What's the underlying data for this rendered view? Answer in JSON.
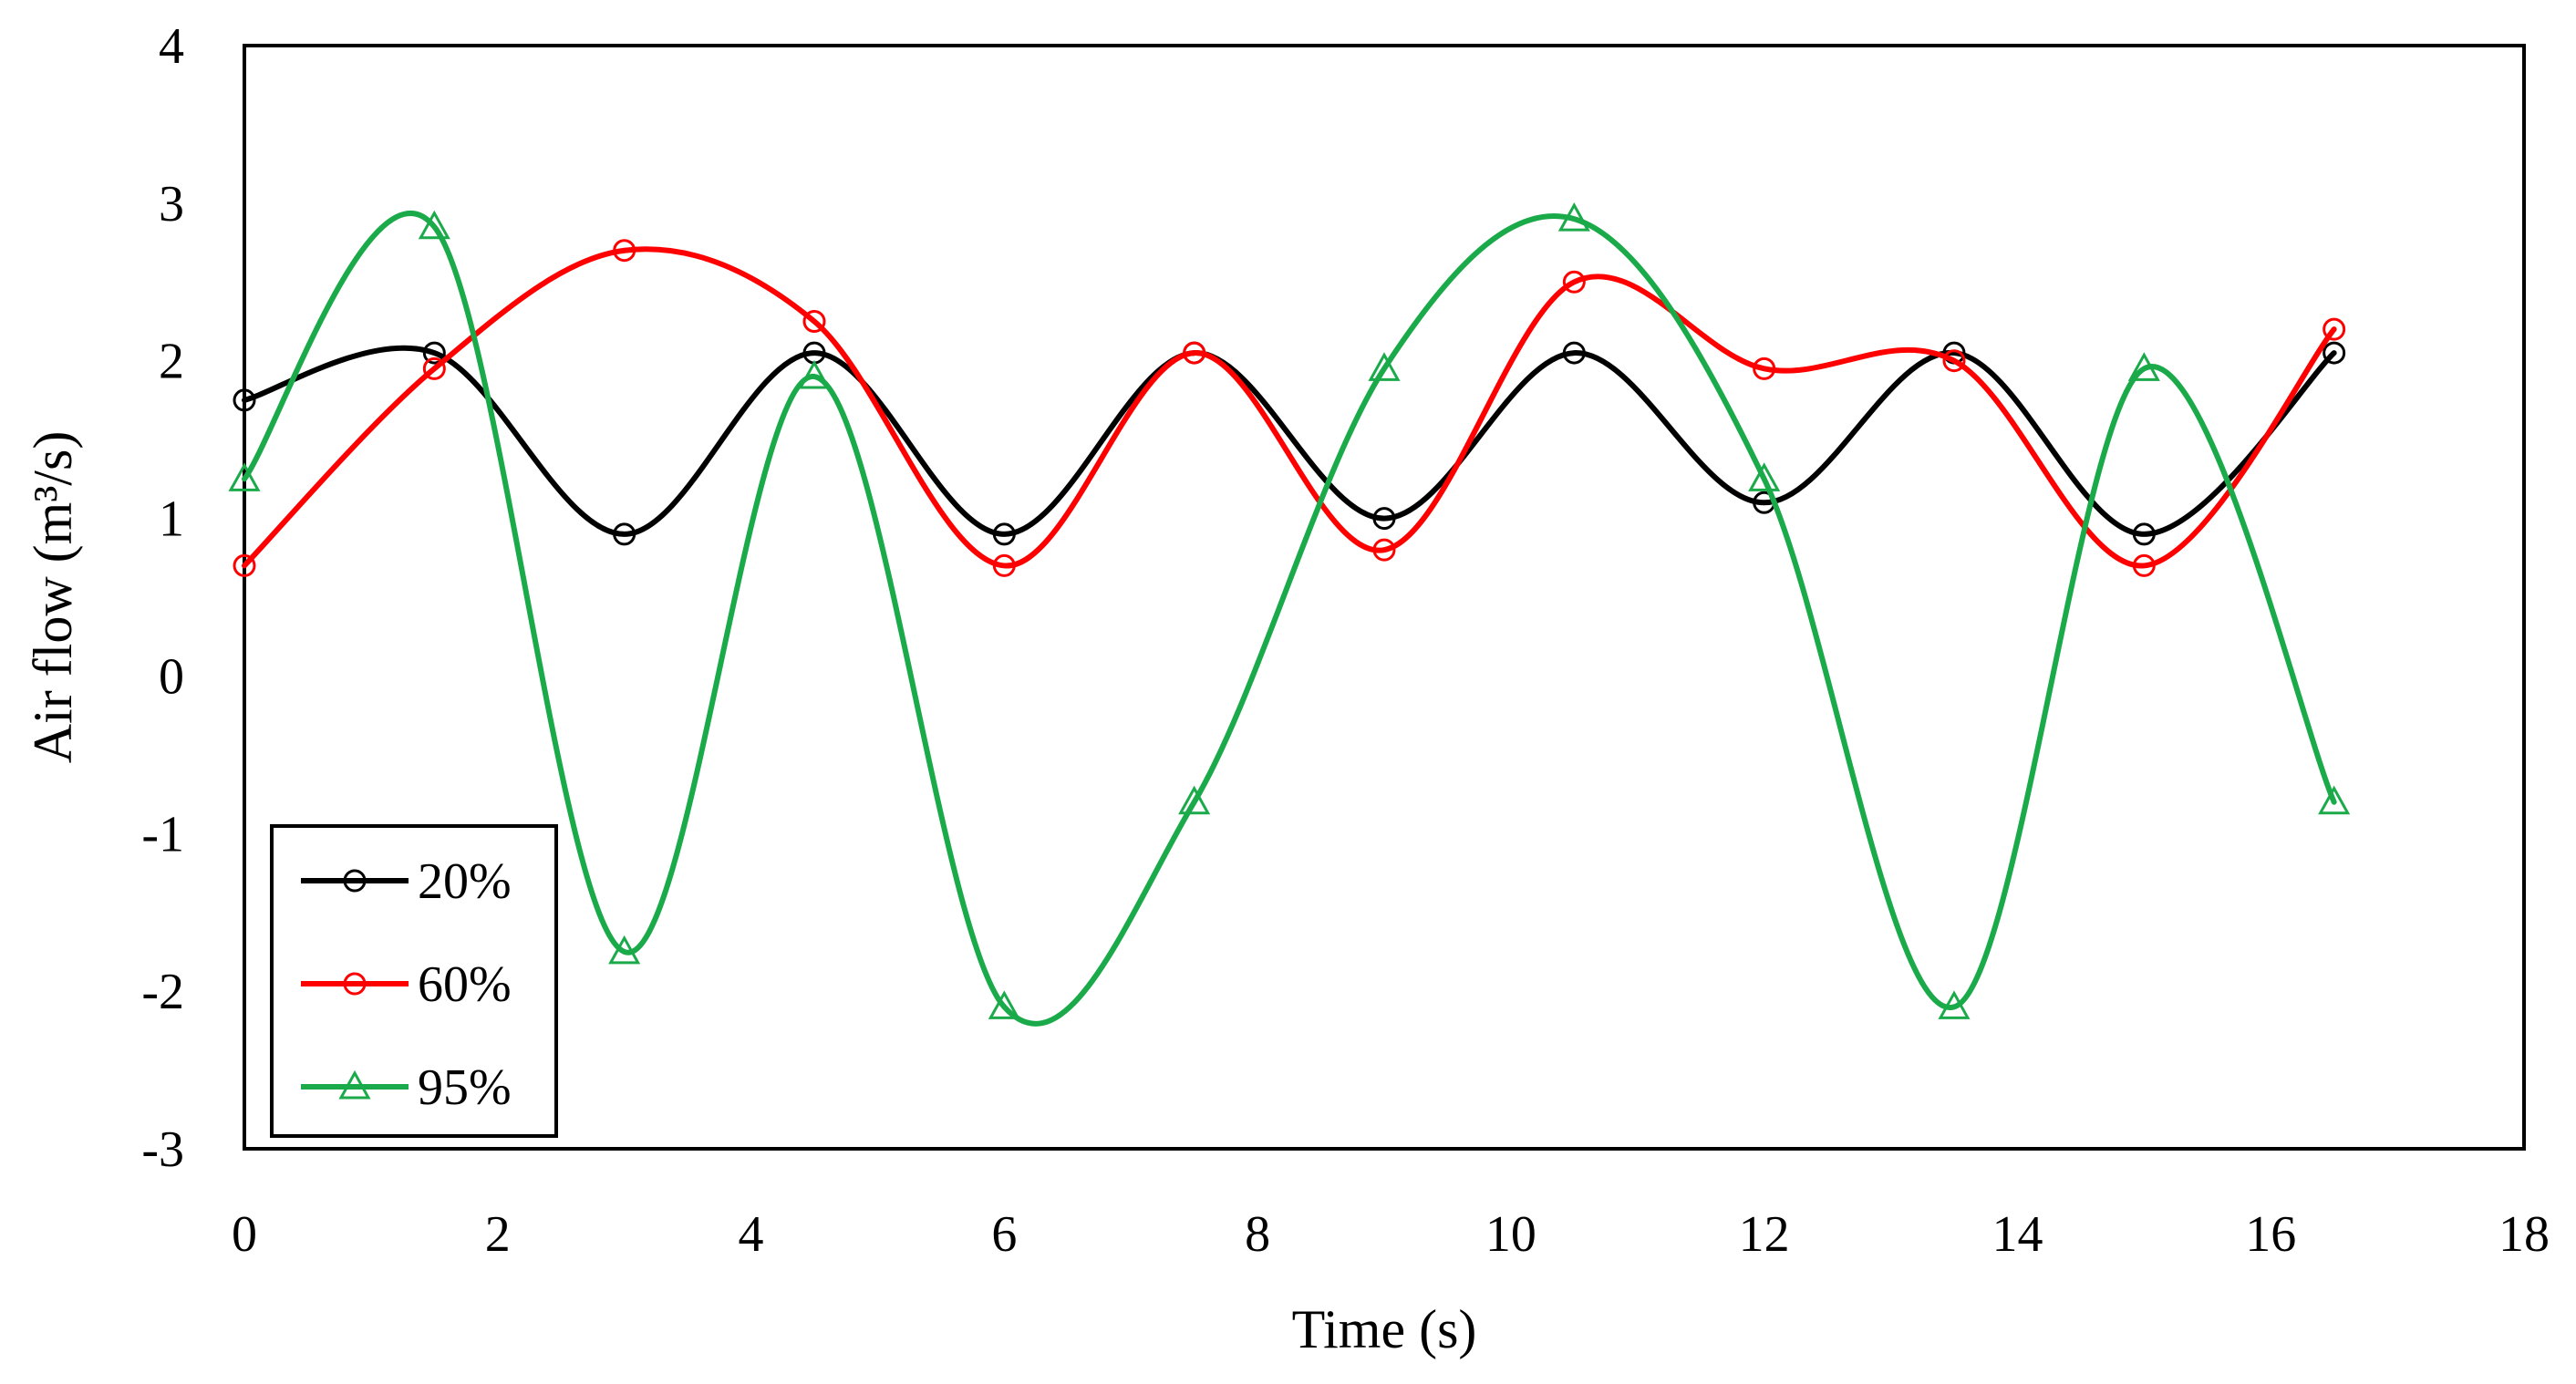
{
  "chart_data": {
    "type": "line",
    "title": "",
    "xlabel": "Time (s)",
    "ylabel": "Air flow (m³/s)",
    "xlim": [
      0,
      18
    ],
    "ylim": [
      -3,
      4
    ],
    "xticks": [
      0,
      2,
      4,
      6,
      8,
      10,
      12,
      14,
      16,
      18
    ],
    "yticks": [
      -3,
      -2,
      -1,
      0,
      1,
      2,
      3,
      4
    ],
    "grid": false,
    "legend_position": "bottom-left",
    "x": [
      0,
      1.5,
      3,
      4.5,
      6,
      7.5,
      9,
      10.5,
      12,
      13.5,
      15,
      16.5
    ],
    "series": [
      {
        "name": "20%",
        "color": "#000000",
        "marker": "circle",
        "values": [
          1.75,
          2.05,
          0.9,
          2.05,
          0.9,
          2.05,
          1.0,
          2.05,
          1.1,
          2.05,
          0.9,
          2.05
        ]
      },
      {
        "name": "60%",
        "color": "#ff0000",
        "marker": "circle",
        "values": [
          0.7,
          1.95,
          2.7,
          2.25,
          0.7,
          2.05,
          0.8,
          2.5,
          1.95,
          2.0,
          0.7,
          2.2
        ]
      },
      {
        "name": "95%",
        "color": "#1aaa4a",
        "marker": "triangle",
        "values": [
          1.25,
          2.85,
          -1.75,
          1.9,
          -2.1,
          -0.8,
          1.95,
          2.9,
          1.25,
          -2.1,
          1.95,
          -0.8
        ]
      }
    ]
  }
}
